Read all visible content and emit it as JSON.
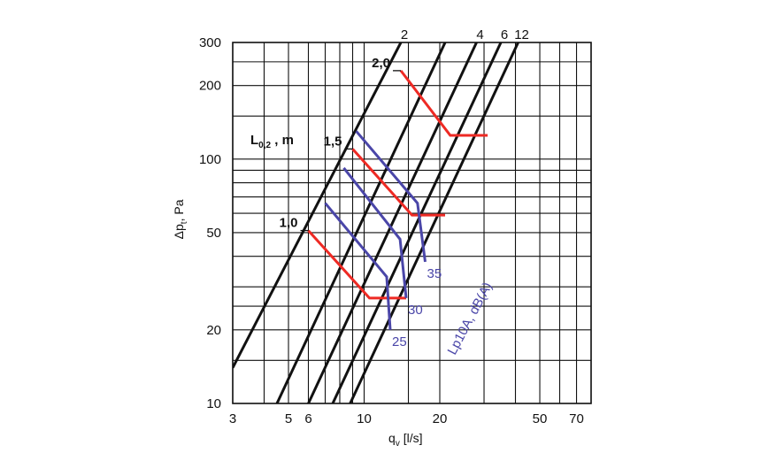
{
  "chart_data": {
    "type": "line",
    "scale": {
      "x": "log",
      "y": "log"
    },
    "xlabel": {
      "main": "q",
      "sub": "v",
      "unit": " [l/s]"
    },
    "ylabel": {
      "main": "Δp",
      "sub": "t",
      "unit": ",  Pa"
    },
    "xlim": [
      3,
      80
    ],
    "ylim": [
      10,
      300
    ],
    "grid": true,
    "x_ticks": [
      3,
      5,
      6,
      10,
      20,
      50,
      70
    ],
    "x_tick_labels": [
      "3",
      "5",
      "6",
      "10",
      "20",
      "50",
      "70"
    ],
    "x_grid": [
      3,
      4,
      5,
      6,
      7,
      8,
      9,
      10,
      15,
      20,
      30,
      40,
      50,
      60,
      70,
      80
    ],
    "y_ticks": [
      10,
      20,
      50,
      100,
      200,
      300
    ],
    "y_tick_labels": [
      "10",
      "20",
      "50",
      "100",
      "200",
      "300"
    ],
    "y_grid": [
      10,
      15,
      20,
      25,
      30,
      40,
      50,
      60,
      70,
      80,
      90,
      100,
      150,
      200,
      250,
      300
    ],
    "diagonal_lines": {
      "labels": [
        "2",
        "4",
        "6",
        "12"
      ],
      "series": [
        {
          "label": "2",
          "points": [
            [
              3,
              14
            ],
            [
              14,
              300
            ]
          ]
        },
        {
          "label": "",
          "points": [
            [
              4.5,
              10
            ],
            [
              21,
              300
            ]
          ]
        },
        {
          "label": "4",
          "points": [
            [
              6,
              10
            ],
            [
              28,
              300
            ]
          ]
        },
        {
          "label": "6",
          "points": [
            [
              7.5,
              10
            ],
            [
              35,
              300
            ]
          ]
        },
        {
          "label": "12",
          "points": [
            [
              8.8,
              10
            ],
            [
              41,
              300
            ]
          ]
        }
      ]
    },
    "throw_series": {
      "title": {
        "main": "L",
        "sub": "0,2",
        "unit": " , m"
      },
      "color": "#ee2a24",
      "series": [
        {
          "name": "2,0",
          "points": [
            [
              14,
              230
            ],
            [
              22,
              125
            ],
            [
              31,
              125
            ]
          ]
        },
        {
          "name": "1,5",
          "points": [
            [
              9,
              110
            ],
            [
              15.5,
              59
            ],
            [
              21,
              59
            ]
          ]
        },
        {
          "name": "1,0",
          "points": [
            [
              6,
              51
            ],
            [
              10.5,
              27
            ],
            [
              14.7,
              27
            ]
          ]
        }
      ]
    },
    "sound_series": {
      "title": "Lp10A, dB(A)",
      "color": "#4a46a8",
      "series": [
        {
          "name": "35",
          "points": [
            [
              9.3,
              130
            ],
            [
              16.3,
              66
            ],
            [
              17.5,
              38
            ]
          ]
        },
        {
          "name": "30",
          "points": [
            [
              8.3,
              92
            ],
            [
              13.9,
              47
            ],
            [
              14.7,
              27
            ]
          ]
        },
        {
          "name": "",
          "points": [
            [
              7,
              66
            ],
            [
              12.3,
              33
            ],
            [
              12.7,
              20
            ]
          ]
        }
      ],
      "end_labels": [
        "35",
        "30",
        "25"
      ]
    }
  }
}
